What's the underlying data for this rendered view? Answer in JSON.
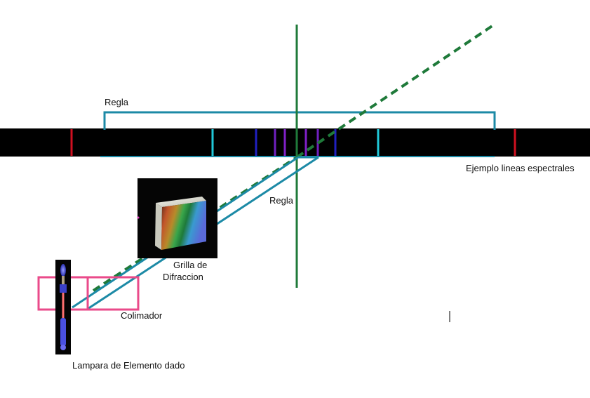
{
  "labels": {
    "ruler_top": "Regla",
    "spectral_lines": "Ejemplo lineas espectrales",
    "ruler_mid": "Regla",
    "grating_line1": "Grilla de",
    "grating_line2": "Difraccion",
    "collimator": "Colimador",
    "lamp": "Lampara de Elemento dado"
  },
  "spectral_lines": [
    {
      "color": "#d01020"
    },
    {
      "color": "#20c8d8"
    },
    {
      "color": "#2020c0"
    },
    {
      "color": "#7020c0"
    },
    {
      "color": "#8020c8"
    },
    {
      "color": "#8020c8"
    },
    {
      "color": "#7020c0"
    },
    {
      "color": "#2020c0"
    },
    {
      "color": "#20c8d8"
    },
    {
      "color": "#d01020"
    }
  ],
  "colors": {
    "spectrum_band": "#000000",
    "ruler": "#1c8aa6",
    "axis": "#1f7a3a",
    "dashed_ray": "#1f7a3a",
    "collimator": "#ea4a8a",
    "grating_bg": "#050505",
    "lamp_tube": "#4a50e0"
  }
}
